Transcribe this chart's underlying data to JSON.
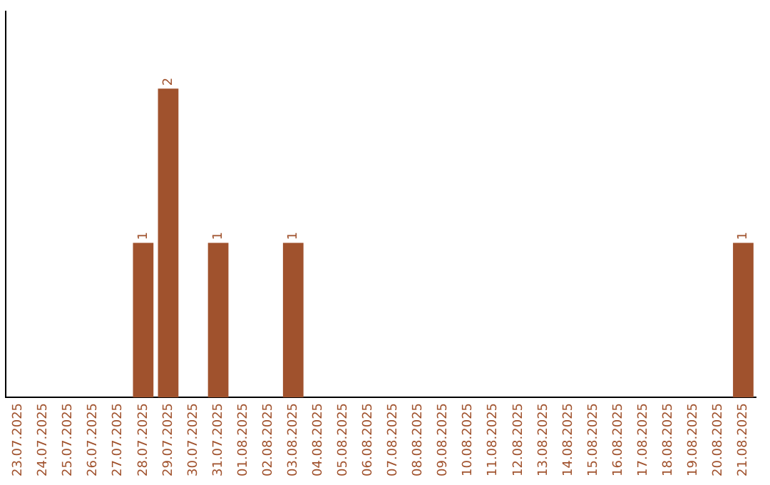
{
  "chart_data": {
    "type": "bar",
    "categories": [
      "23.07.2025",
      "24.07.2025",
      "25.07.2025",
      "26.07.2025",
      "27.07.2025",
      "28.07.2025",
      "29.07.2025",
      "30.07.2025",
      "31.07.2025",
      "01.08.2025",
      "02.08.2025",
      "03.08.2025",
      "04.08.2025",
      "05.08.2025",
      "06.08.2025",
      "07.08.2025",
      "08.08.2025",
      "09.08.2025",
      "10.08.2025",
      "11.08.2025",
      "12.08.2025",
      "13.08.2025",
      "14.08.2025",
      "15.08.2025",
      "16.08.2025",
      "17.08.2025",
      "18.08.2025",
      "19.08.2025",
      "20.08.2025",
      "21.08.2025"
    ],
    "values": [
      0,
      0,
      0,
      0,
      0,
      1,
      2,
      0,
      1,
      0,
      0,
      1,
      0,
      0,
      0,
      0,
      0,
      0,
      0,
      0,
      0,
      0,
      0,
      0,
      0,
      0,
      0,
      0,
      0,
      1
    ],
    "color": "#a0522d",
    "value_labels": [
      null,
      null,
      null,
      null,
      null,
      "1",
      "2",
      null,
      "1",
      null,
      null,
      "1",
      null,
      null,
      null,
      null,
      null,
      null,
      null,
      null,
      null,
      null,
      null,
      null,
      null,
      null,
      null,
      null,
      null,
      "1"
    ],
    "grid": false,
    "legend": false,
    "tick_labels": "x"
  }
}
